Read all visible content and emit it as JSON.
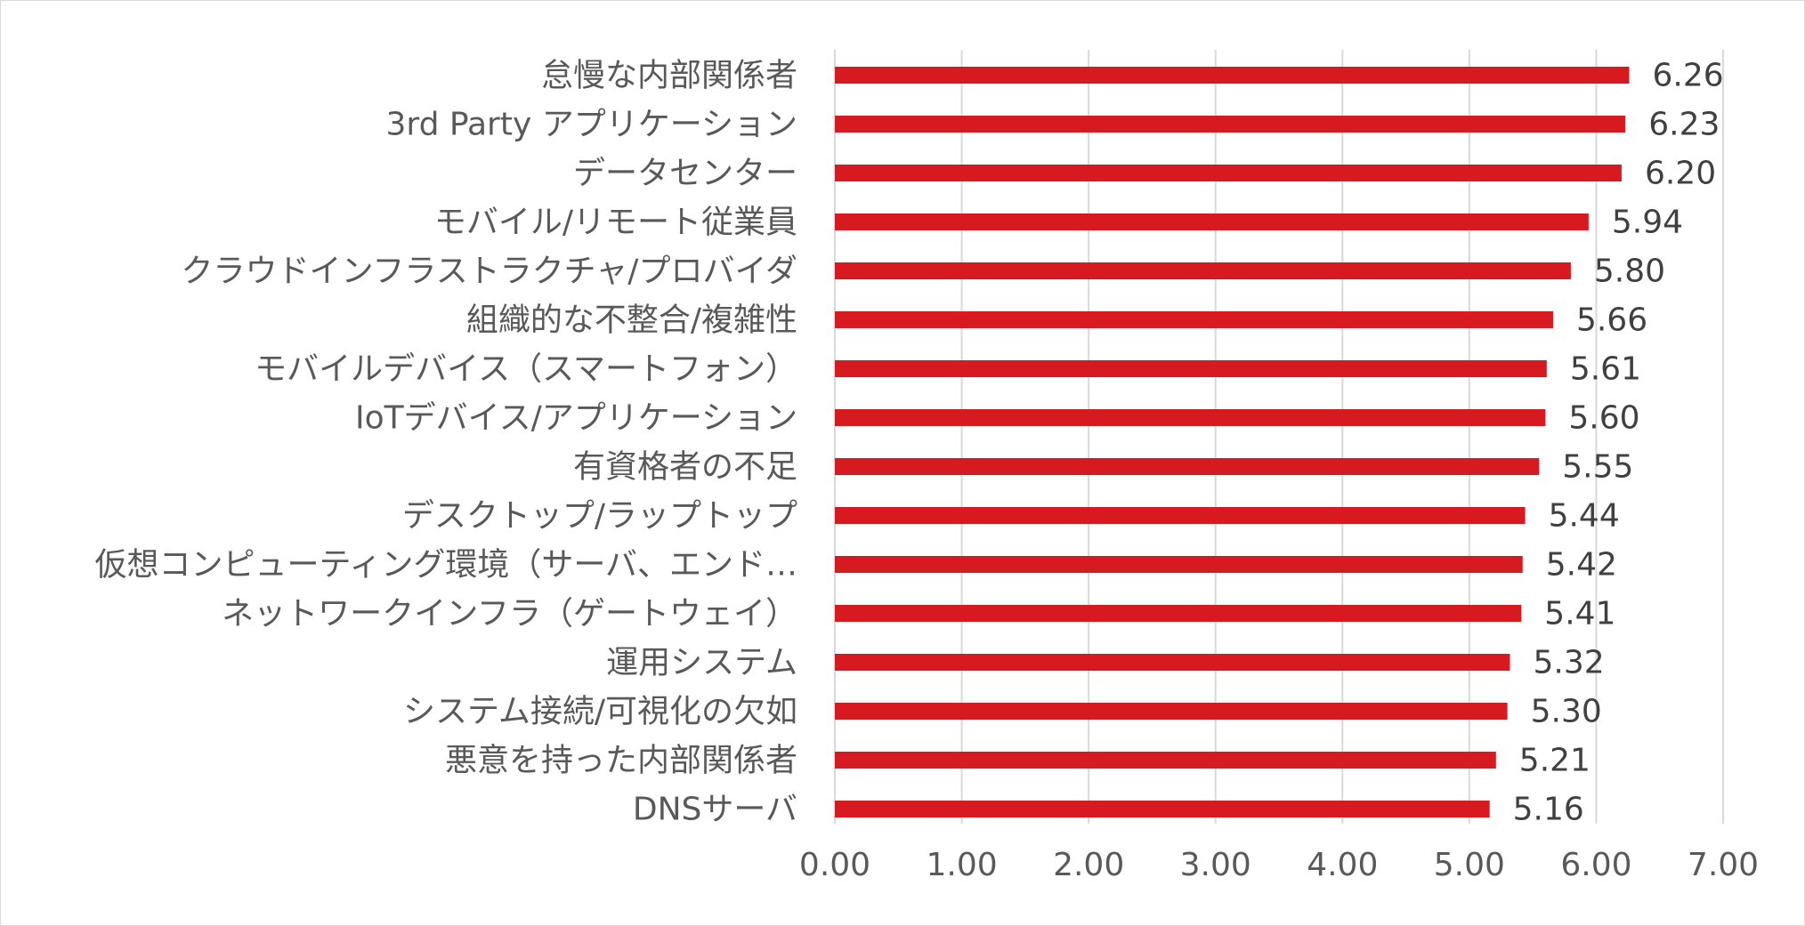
{
  "chart_data": {
    "type": "bar",
    "orientation": "horizontal",
    "categories": [
      "怠慢な内部関係者",
      "3rd Party アプリケーション",
      "データセンター",
      "モバイル/リモート従業員",
      "クラウドインフラストラクチャ/プロバイダ",
      "組織的な不整合/複雑性",
      "モバイルデバイス（スマートフォン）",
      "IoTデバイス/アプリケーション",
      "有資格者の不足",
      "デスクトップ/ラップトップ",
      "仮想コンピューティング環境（サーバ、エンド…",
      "ネットワークインフラ（ゲートウェイ）",
      "運用システム",
      "システム接続/可視化の欠如",
      "悪意を持った内部関係者",
      "DNSサーバ"
    ],
    "values": [
      6.26,
      6.23,
      6.2,
      5.94,
      5.8,
      5.66,
      5.61,
      5.6,
      5.55,
      5.44,
      5.42,
      5.41,
      5.32,
      5.3,
      5.21,
      5.16
    ],
    "value_labels": [
      "6.26",
      "6.23",
      "6.20",
      "5.94",
      "5.80",
      "5.66",
      "5.61",
      "5.60",
      "5.55",
      "5.44",
      "5.42",
      "5.41",
      "5.32",
      "5.30",
      "5.21",
      "5.16"
    ],
    "xlim": [
      0,
      7
    ],
    "x_ticks": [
      "0.00",
      "1.00",
      "2.00",
      "3.00",
      "4.00",
      "5.00",
      "6.00",
      "7.00"
    ],
    "title": "",
    "xlabel": "",
    "ylabel": "",
    "grid": "vertical",
    "legend": "none",
    "bar_color": "#d71920"
  }
}
